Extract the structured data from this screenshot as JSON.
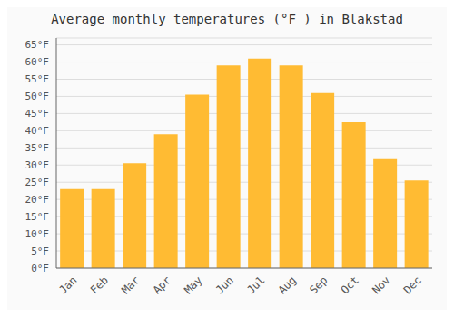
{
  "chart_data": {
    "type": "bar",
    "title": "Average monthly temperatures (°F ) in Blakstad",
    "categories": [
      "Jan",
      "Feb",
      "Mar",
      "Apr",
      "May",
      "Jun",
      "Jul",
      "Aug",
      "Sep",
      "Oct",
      "Nov",
      "Dec"
    ],
    "values": [
      23,
      23,
      30.5,
      39,
      50.5,
      59,
      61,
      59,
      51,
      42.5,
      32,
      25.5
    ],
    "color": "#FFBB33",
    "ylim": [
      0,
      67
    ],
    "yticks": [
      {
        "value": 0,
        "label": "0°F"
      },
      {
        "value": 5,
        "label": "5°F"
      },
      {
        "value": 10,
        "label": "10°F"
      },
      {
        "value": 15,
        "label": "15°F"
      },
      {
        "value": 20,
        "label": "20°F"
      },
      {
        "value": 25,
        "label": "25°F"
      },
      {
        "value": 30,
        "label": "30°F"
      },
      {
        "value": 35,
        "label": "35°F"
      },
      {
        "value": 40,
        "label": "40°F"
      },
      {
        "value": 45,
        "label": "45°F"
      },
      {
        "value": 50,
        "label": "50°F"
      },
      {
        "value": 55,
        "label": "55°F"
      },
      {
        "value": 60,
        "label": "60°F"
      },
      {
        "value": 65,
        "label": "65°F"
      }
    ],
    "grid": true
  }
}
